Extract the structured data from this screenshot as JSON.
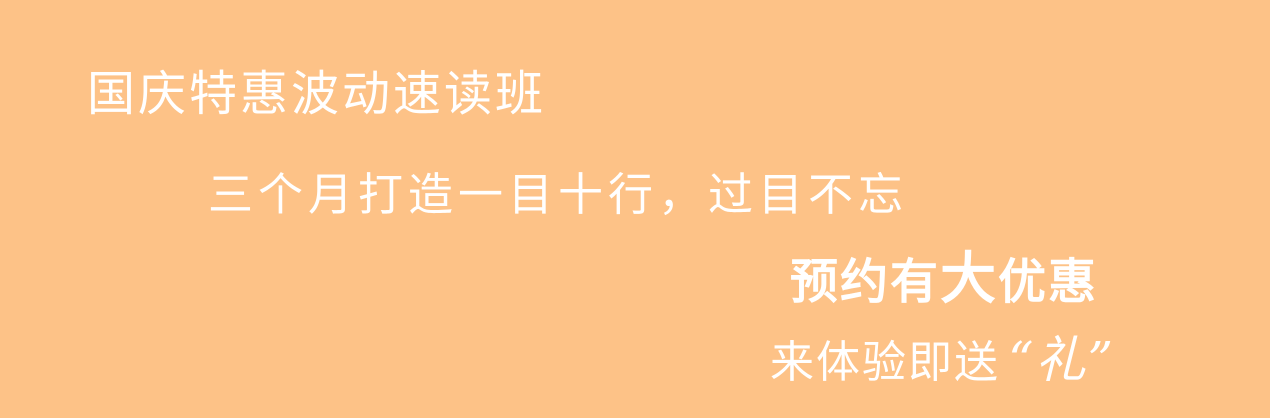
{
  "banner": {
    "title": "国庆特惠波动速读班",
    "subtitle": "三个月打造一目十行，过目不忘",
    "offer_pre": "预约有",
    "offer_big": "大",
    "offer_post": "优惠",
    "cta_text": "来体验即送",
    "gift_text": "“礼”",
    "background_color": "#fdc287",
    "text_color": "#ffffff"
  }
}
